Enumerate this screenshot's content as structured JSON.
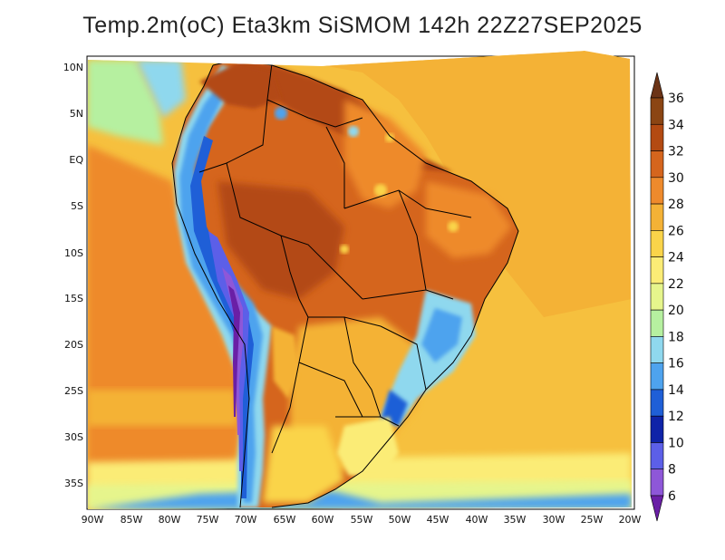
{
  "title": "Temp.2m(oC) Eta3km SiSMOM 142h 22Z27SEP2025",
  "lat_axis": [
    "10N",
    "5N",
    "EQ",
    "5S",
    "10S",
    "15S",
    "20S",
    "25S",
    "30S",
    "35S"
  ],
  "lon_axis": [
    "90W",
    "85W",
    "80W",
    "75W",
    "70W",
    "65W",
    "60W",
    "55W",
    "50W",
    "45W",
    "40W",
    "35W",
    "30W",
    "25W",
    "20W"
  ],
  "colorbar": {
    "labels": [
      "36",
      "34",
      "32",
      "30",
      "28",
      "26",
      "24",
      "22",
      "20",
      "18",
      "16",
      "14",
      "12",
      "10",
      "8",
      "6"
    ],
    "colors": [
      "#6b3316",
      "#8b4513",
      "#b34a12",
      "#d5651d",
      "#ee8a2c",
      "#f4b236",
      "#fad44a",
      "#fbec76",
      "#e6f58c",
      "#b6f0a0",
      "#8fd8ee",
      "#4ea3ee",
      "#1f5fd7",
      "#0f23a8",
      "#5c5fe8",
      "#8e57d8",
      "#6a1fa6"
    ]
  }
}
